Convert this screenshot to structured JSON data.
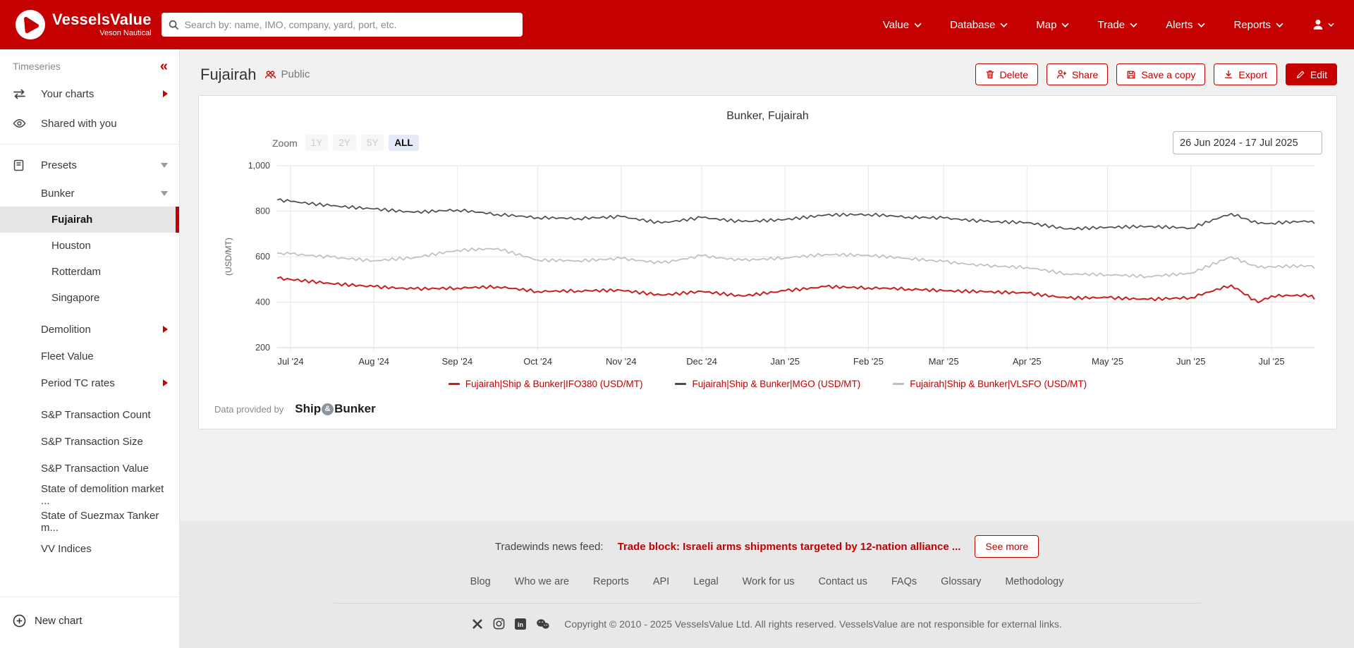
{
  "navbar": {
    "brand": "VesselsValue",
    "brand_sub": "Veson Nautical",
    "search_placeholder": "Search by: name, IMO, company, yard, port, etc.",
    "items": [
      {
        "label": "Value"
      },
      {
        "label": "Database"
      },
      {
        "label": "Map"
      },
      {
        "label": "Trade"
      },
      {
        "label": "Alerts"
      },
      {
        "label": "Reports"
      }
    ]
  },
  "sidebar": {
    "section_title": "Timeseries",
    "your_charts": "Your charts",
    "shared_with_you": "Shared with you",
    "presets": "Presets",
    "bunker_group": "Bunker",
    "bunker_children": [
      "Fujairah",
      "Houston",
      "Rotterdam",
      "Singapore"
    ],
    "selected_item": "Fujairah",
    "preset_items": [
      "Demolition",
      "Fleet Value",
      "Period TC rates",
      "S&P Transaction Count",
      "S&P Transaction Size",
      "S&P Transaction Value",
      "State of demolition market ...",
      "State of Suezmax Tanker m...",
      "VV Indices"
    ],
    "new_chart": "New chart"
  },
  "page_header": {
    "title": "Fujairah",
    "visibility": "Public",
    "buttons": {
      "delete": "Delete",
      "share": "Share",
      "save_copy": "Save a copy",
      "export": "Export",
      "edit": "Edit"
    }
  },
  "chart_header": {
    "zoom_label": "Zoom",
    "zoom_options": [
      "1Y",
      "2Y",
      "5Y",
      "ALL"
    ],
    "zoom_active": "ALL",
    "date_range": "26 Jun 2024 - 17 Jul 2025"
  },
  "chart_data": {
    "type": "line",
    "title": "Bunker, Fujairah",
    "xlabel": "",
    "ylabel": "(USD/MT)",
    "ylim": [
      200,
      1000
    ],
    "y_ticks": [
      200,
      400,
      600,
      800,
      1000
    ],
    "y_tick_labels": [
      "200",
      "400",
      "600",
      "800",
      "1,000"
    ],
    "x_ticks": [
      "Jul '24",
      "Aug '24",
      "Sep '24",
      "Oct '24",
      "Nov '24",
      "Dec '24",
      "Jan '25",
      "Feb '25",
      "Mar '25",
      "Apr '25",
      "May '25",
      "Jun '25",
      "Jul '25"
    ],
    "x_tick_dates": [
      "2024-07-01",
      "2024-08-01",
      "2024-09-01",
      "2024-10-01",
      "2024-11-01",
      "2024-12-01",
      "2025-01-01",
      "2025-02-01",
      "2025-03-01",
      "2025-04-01",
      "2025-05-01",
      "2025-06-01",
      "2025-07-01"
    ],
    "x_range": [
      "2024-06-26",
      "2025-07-17"
    ],
    "grid": true,
    "legend_position": "bottom",
    "x": [
      "2024-06-26",
      "2024-07-01",
      "2024-07-16",
      "2024-08-01",
      "2024-08-16",
      "2024-09-01",
      "2024-09-16",
      "2024-10-01",
      "2024-10-16",
      "2024-11-01",
      "2024-11-16",
      "2024-12-01",
      "2024-12-16",
      "2025-01-01",
      "2025-01-16",
      "2025-02-01",
      "2025-02-16",
      "2025-03-01",
      "2025-03-16",
      "2025-04-01",
      "2025-04-16",
      "2025-05-01",
      "2025-05-16",
      "2025-06-01",
      "2025-06-16",
      "2025-06-26",
      "2025-07-01",
      "2025-07-16",
      "2025-07-17"
    ],
    "series": [
      {
        "name": "Fujairah|Ship & Bunker|IFO380 (USD/MT)",
        "color": "#cc1d1d",
        "values": [
          505,
          500,
          482,
          468,
          458,
          462,
          468,
          447,
          450,
          452,
          431,
          447,
          427,
          450,
          468,
          463,
          458,
          450,
          446,
          440,
          418,
          420,
          412,
          420,
          475,
          398,
          428,
          430,
          412
        ]
      },
      {
        "name": "Fujairah|Ship & Bunker|MGO (USD/MT)",
        "color": "#4d4d4d",
        "values": [
          850,
          843,
          824,
          810,
          795,
          806,
          786,
          772,
          768,
          776,
          748,
          772,
          754,
          763,
          783,
          786,
          774,
          770,
          755,
          750,
          722,
          729,
          733,
          726,
          790,
          745,
          748,
          757,
          745
        ]
      },
      {
        "name": "Fujairah|Ship & Bunker|VLSFO (USD/MT)",
        "color": "#bfbfbf",
        "values": [
          615,
          612,
          598,
          582,
          596,
          628,
          636,
          585,
          582,
          592,
          572,
          604,
          584,
          595,
          610,
          606,
          592,
          578,
          560,
          553,
          524,
          521,
          513,
          527,
          600,
          552,
          556,
          560,
          548
        ]
      }
    ]
  },
  "provider": {
    "prefix": "Data provided by",
    "logo_ship": "Ship",
    "logo_amp": "&",
    "logo_bunker": "Bunker"
  },
  "news": {
    "label": "Tradewinds news feed:",
    "headline": "Trade block: Israeli arms shipments targeted by 12-nation alliance ...",
    "see_more": "See more"
  },
  "footer": {
    "links": [
      "Blog",
      "Who we are",
      "Reports",
      "API",
      "Legal",
      "Work for us",
      "Contact us",
      "FAQs",
      "Glossary",
      "Methodology"
    ],
    "copyright": "Copyright © 2010 - 2025 VesselsValue Ltd. All rights reserved. VesselsValue are not responsible for external links."
  },
  "colors": {
    "brand_red": "#c40000",
    "ifo380": "#cc1d1d",
    "mgo": "#4d4d4d",
    "vlsfo": "#bfbfbf"
  }
}
